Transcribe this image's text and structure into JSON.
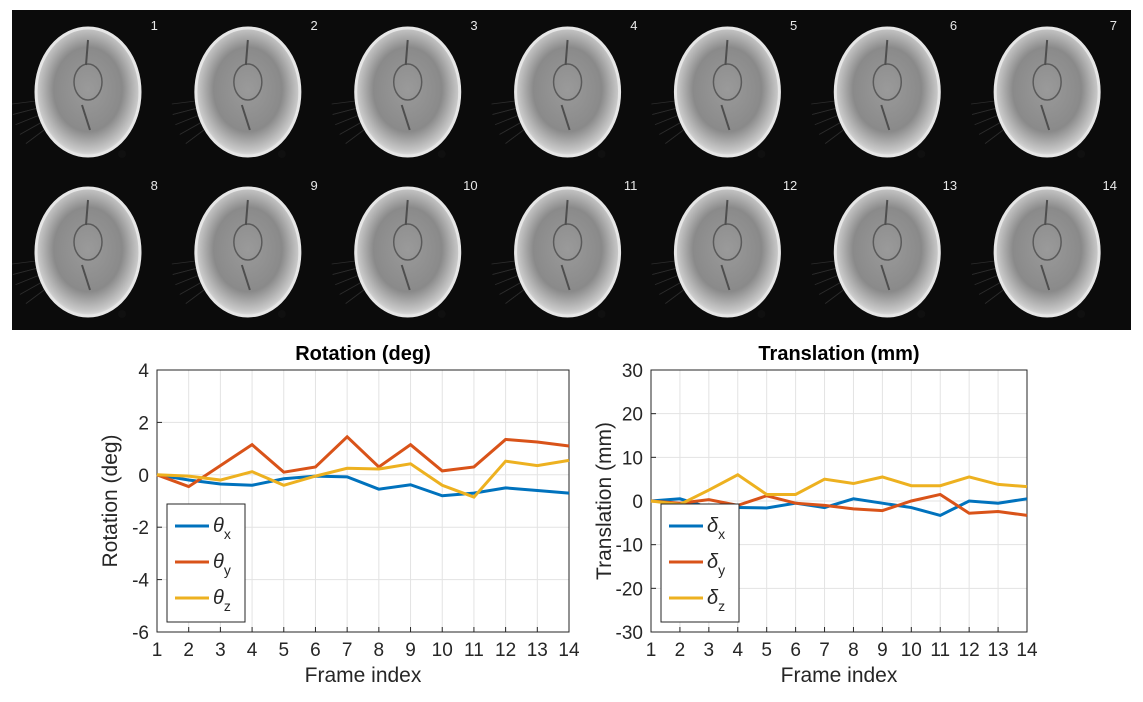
{
  "mri": {
    "frame_labels": [
      "1",
      "2",
      "3",
      "4",
      "5",
      "6",
      "7",
      "8",
      "9",
      "10",
      "11",
      "12",
      "13",
      "14"
    ],
    "background_color": "#0b0b0b",
    "label_color": "#e8e8e8"
  },
  "chart_data": [
    {
      "type": "line",
      "title": "Rotation (deg)",
      "xlabel": "Frame index",
      "ylabel": "Rotation (deg)",
      "x": [
        1,
        2,
        3,
        4,
        5,
        6,
        7,
        8,
        9,
        10,
        11,
        12,
        13,
        14
      ],
      "xticks": [
        "1",
        "2",
        "3",
        "4",
        "5",
        "6",
        "7",
        "8",
        "9",
        "10",
        "11",
        "12",
        "13",
        "14"
      ],
      "ylim": [
        -6,
        4
      ],
      "yticks": [
        "-6",
        "-4",
        "-2",
        "0",
        "2",
        "4"
      ],
      "grid": true,
      "legend_position": "bottom-left",
      "series": [
        {
          "name": "θx",
          "sym": "θ",
          "sub": "x",
          "color": "#0072BD",
          "values": [
            0,
            -0.2,
            -0.35,
            -0.4,
            -0.15,
            -0.05,
            -0.08,
            -0.55,
            -0.38,
            -0.8,
            -0.7,
            -0.5,
            -0.6,
            -0.7
          ]
        },
        {
          "name": "θy",
          "sym": "θ",
          "sub": "y",
          "color": "#D95319",
          "values": [
            0,
            -0.45,
            0.35,
            1.15,
            0.1,
            0.3,
            1.45,
            0.3,
            1.15,
            0.15,
            0.3,
            1.35,
            1.25,
            1.1
          ]
        },
        {
          "name": "θz",
          "sym": "θ",
          "sub": "z",
          "color": "#EDB120",
          "values": [
            0,
            -0.05,
            -0.2,
            0.12,
            -0.4,
            -0.05,
            0.25,
            0.22,
            0.42,
            -0.4,
            -0.85,
            0.52,
            0.35,
            0.55
          ]
        }
      ]
    },
    {
      "type": "line",
      "title": "Translation (mm)",
      "xlabel": "Frame index",
      "ylabel": "Translation (mm)",
      "x": [
        1,
        2,
        3,
        4,
        5,
        6,
        7,
        8,
        9,
        10,
        11,
        12,
        13,
        14
      ],
      "xticks": [
        "1",
        "2",
        "3",
        "4",
        "5",
        "6",
        "7",
        "8",
        "9",
        "10",
        "11",
        "12",
        "13",
        "14"
      ],
      "ylim": [
        -30,
        30
      ],
      "yticks": [
        "-30",
        "-20",
        "-10",
        "0",
        "10",
        "20",
        "30"
      ],
      "grid": true,
      "legend_position": "bottom-left",
      "series": [
        {
          "name": "δx",
          "sym": "δ",
          "sub": "x",
          "color": "#0072BD",
          "values": [
            0,
            0.5,
            -1.5,
            -1.5,
            -1.6,
            -0.5,
            -1.5,
            0.5,
            -0.5,
            -1.5,
            -3.3,
            0,
            -0.5,
            0.5
          ]
        },
        {
          "name": "δy",
          "sym": "δ",
          "sub": "y",
          "color": "#D95319",
          "values": [
            0,
            -0.5,
            0.3,
            -1.0,
            1.2,
            -0.5,
            -1.0,
            -1.8,
            -2.2,
            0,
            1.5,
            -2.8,
            -2.4,
            -3.3
          ]
        },
        {
          "name": "δz",
          "sym": "δ",
          "sub": "z",
          "color": "#EDB120",
          "values": [
            0,
            -0.8,
            2.5,
            6.0,
            1.5,
            1.5,
            5.0,
            4.0,
            5.5,
            3.5,
            3.5,
            5.5,
            3.8,
            3.3
          ]
        }
      ]
    }
  ]
}
